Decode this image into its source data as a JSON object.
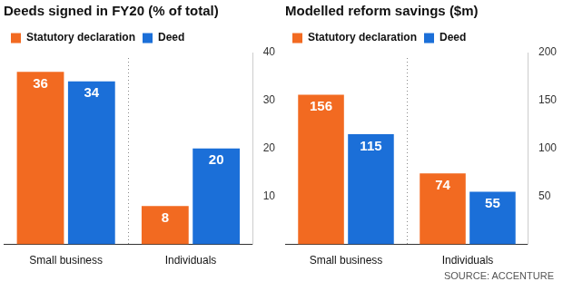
{
  "chart_data": [
    {
      "type": "bar",
      "title": "Deeds signed in FY20 (% of total)",
      "categories": [
        "Small business",
        "Individuals"
      ],
      "series": [
        {
          "name": "Statutory declaration",
          "color": "#f26a21",
          "values": [
            36,
            8
          ]
        },
        {
          "name": "Deed",
          "color": "#1b6fd8",
          "values": [
            34,
            20
          ]
        }
      ],
      "ylim": [
        0,
        40
      ],
      "yticks": [
        10,
        20,
        30,
        40
      ],
      "grid": false,
      "legend": "top-left",
      "data_labels": true
    },
    {
      "type": "bar",
      "title": "Modelled reform savings ($m)",
      "categories": [
        "Small business",
        "Individuals"
      ],
      "series": [
        {
          "name": "Statutory declaration",
          "color": "#f26a21",
          "values": [
            156,
            74
          ]
        },
        {
          "name": "Deed",
          "color": "#1b6fd8",
          "values": [
            115,
            55
          ]
        }
      ],
      "ylim": [
        0,
        200
      ],
      "yticks": [
        50,
        100,
        150,
        200
      ],
      "grid": false,
      "legend": "top-left",
      "data_labels": true,
      "annotation": "SOURCE: ACCENTURE"
    }
  ]
}
